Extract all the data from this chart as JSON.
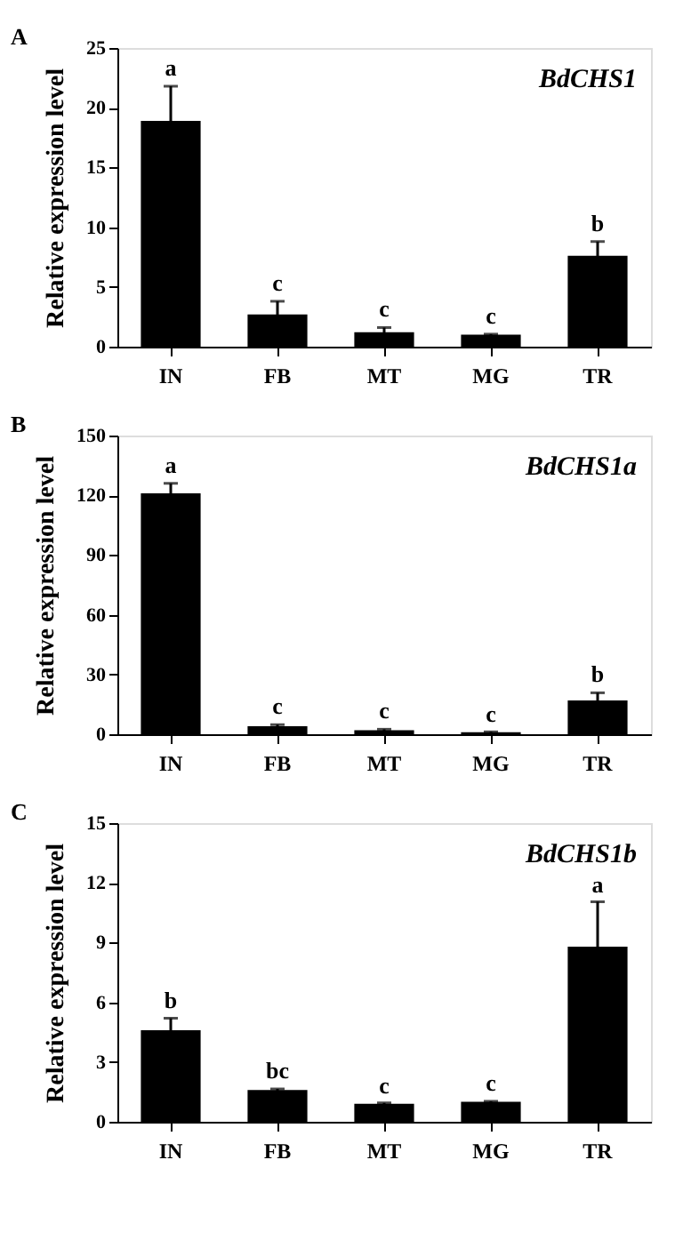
{
  "chart_data": [
    {
      "type": "bar",
      "title": "BdCHS1",
      "ylabel": "Relative expression level",
      "categories": [
        "IN",
        "FB",
        "MT",
        "MG",
        "TR"
      ],
      "values": [
        18.9,
        2.7,
        1.2,
        1.0,
        7.6
      ],
      "errors": [
        2.9,
        1.1,
        0.4,
        0.05,
        1.2
      ],
      "color": "#000000",
      "ylim": [
        0,
        25
      ],
      "yticks": [
        0,
        5,
        10,
        15,
        20,
        25
      ],
      "grid": false,
      "annotations": [
        "A",
        {
          "text": "a",
          "x": "IN",
          "y": 21.8
        },
        {
          "text": "c",
          "x": "FB",
          "y": 3.8
        },
        {
          "text": "c",
          "x": "MT",
          "y": 1.6
        },
        {
          "text": "c",
          "x": "MG",
          "y": 1.05
        },
        {
          "text": "b",
          "x": "TR",
          "y": 8.8
        }
      ]
    },
    {
      "type": "bar",
      "title": "BdCHS1a",
      "ylabel": "Relative expression level",
      "categories": [
        "IN",
        "FB",
        "MT",
        "MG",
        "TR"
      ],
      "values": [
        121,
        4,
        2,
        1,
        17
      ],
      "errors": [
        5,
        0.8,
        0.5,
        0.2,
        3.8
      ],
      "color": "#000000",
      "ylim": [
        0,
        150
      ],
      "yticks": [
        0,
        30,
        60,
        90,
        120,
        150
      ],
      "grid": false,
      "annotations": [
        "B",
        {
          "text": "a",
          "x": "IN",
          "y": 126
        },
        {
          "text": "c",
          "x": "FB",
          "y": 5
        },
        {
          "text": "c",
          "x": "MT",
          "y": 2.5
        },
        {
          "text": "c",
          "x": "MG",
          "y": 1
        },
        {
          "text": "b",
          "x": "TR",
          "y": 21
        }
      ]
    },
    {
      "type": "bar",
      "title": "BdCHS1b",
      "ylabel": "Relative expression level",
      "categories": [
        "IN",
        "FB",
        "MT",
        "MG",
        "TR"
      ],
      "values": [
        4.6,
        1.6,
        0.9,
        1.0,
        8.8
      ],
      "errors": [
        0.6,
        0.05,
        0.05,
        0.03,
        2.25
      ],
      "color": "#000000",
      "ylim": [
        0,
        15
      ],
      "yticks": [
        0,
        3,
        6,
        9,
        12,
        15
      ],
      "grid": false,
      "annotations": [
        "C",
        {
          "text": "b",
          "x": "IN",
          "y": 5.2
        },
        {
          "text": "bc",
          "x": "FB",
          "y": 1.65
        },
        {
          "text": "c",
          "x": "MT",
          "y": 0.9
        },
        {
          "text": "c",
          "x": "MG",
          "y": 1.03
        },
        {
          "text": "a",
          "x": "TR",
          "y": 11
        }
      ]
    }
  ]
}
